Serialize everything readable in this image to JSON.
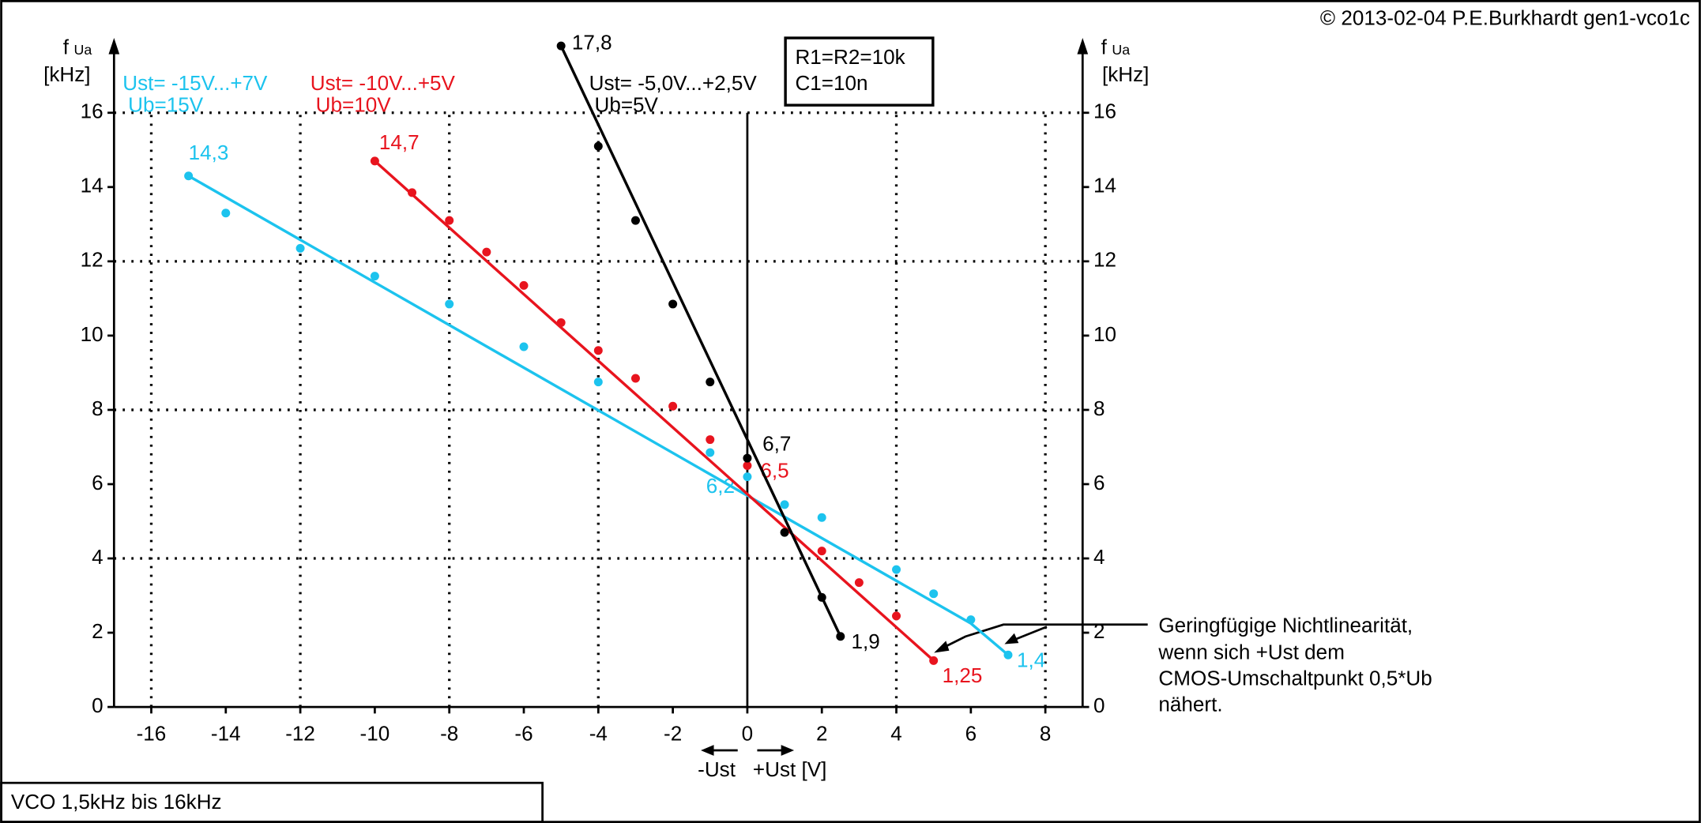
{
  "copyright": "© 2013-02-04 P.E.Burkhardt gen1-vco1c",
  "footer": "VCO 1,5kHz bis 16kHz",
  "chart_data": {
    "type": "scatter",
    "y_label": {
      "symbol": "f",
      "sub": "Ua",
      "unit": "[kHz]"
    },
    "x_label": {
      "minus": "-Ust",
      "plus": "+Ust [V]"
    },
    "xlim": [
      -17,
      9
    ],
    "ylim": [
      0,
      18
    ],
    "xticks": [
      -16,
      -14,
      -12,
      -10,
      -8,
      -6,
      -4,
      -2,
      0,
      2,
      4,
      6,
      8
    ],
    "yticks": [
      0,
      2,
      4,
      6,
      8,
      10,
      12,
      14,
      16
    ],
    "xgrid": [
      -16,
      -12,
      -8,
      -4,
      4,
      8
    ],
    "ygrid": [
      4,
      8,
      12,
      16
    ],
    "info_box": [
      "R1=R2=10k",
      "C1=10n"
    ],
    "annotation": [
      "Geringfügige Nichtlinearität,",
      "wenn sich +Ust  dem",
      "CMOS-Umschaltpunkt 0,5*Ub",
      "nähert."
    ],
    "series": [
      {
        "name": "Ust= -15V...+7V",
        "supply": "Ub=15V",
        "color": "#1cc3ee",
        "x": [
          -15,
          -14,
          -12,
          -10,
          -8,
          -6,
          -4,
          -1,
          0,
          1,
          2,
          4,
          5,
          6,
          7
        ],
        "values": [
          14.3,
          13.3,
          12.35,
          11.6,
          10.85,
          9.7,
          8.75,
          6.85,
          6.2,
          5.45,
          5.1,
          3.7,
          3.05,
          2.35,
          1.4
        ],
        "value_labels": [
          "14,3",
          null,
          null,
          null,
          null,
          null,
          null,
          null,
          "6,2",
          null,
          null,
          null,
          null,
          null,
          "1,4"
        ],
        "fit": {
          "x": [
            -15,
            6,
            7
          ],
          "y": [
            14.3,
            2.25,
            1.4
          ]
        }
      },
      {
        "name": "Ust= -10V...+5V",
        "supply": "Ub=10V",
        "color": "#e8141e",
        "x": [
          -10,
          -9,
          -8,
          -7,
          -6,
          -5,
          -4,
          -3,
          -2,
          -1,
          0,
          2,
          3,
          4,
          5
        ],
        "values": [
          14.7,
          13.85,
          13.1,
          12.25,
          11.35,
          10.35,
          9.6,
          8.85,
          8.1,
          7.2,
          6.5,
          4.2,
          3.35,
          2.45,
          1.25
        ],
        "value_labels": [
          "14,7",
          null,
          null,
          null,
          null,
          null,
          null,
          null,
          null,
          null,
          "6,5",
          null,
          null,
          null,
          "1,25"
        ],
        "fit": {
          "x": [
            -10,
            5
          ],
          "y": [
            14.7,
            1.25
          ]
        }
      },
      {
        "name": "Ust= -5,0V...+2,5V",
        "supply": "Ub=5V",
        "color": "#000000",
        "x": [
          -5,
          -4,
          -3,
          -2,
          -1,
          0,
          1,
          2,
          2.5
        ],
        "values": [
          17.8,
          15.1,
          13.1,
          10.85,
          8.75,
          6.7,
          4.7,
          2.95,
          1.9
        ],
        "value_labels": [
          "17,8",
          null,
          null,
          null,
          null,
          "6,7",
          null,
          null,
          "1,9"
        ],
        "fit": {
          "x": [
            -5,
            2.5
          ],
          "y": [
            17.8,
            1.9
          ]
        }
      }
    ]
  }
}
